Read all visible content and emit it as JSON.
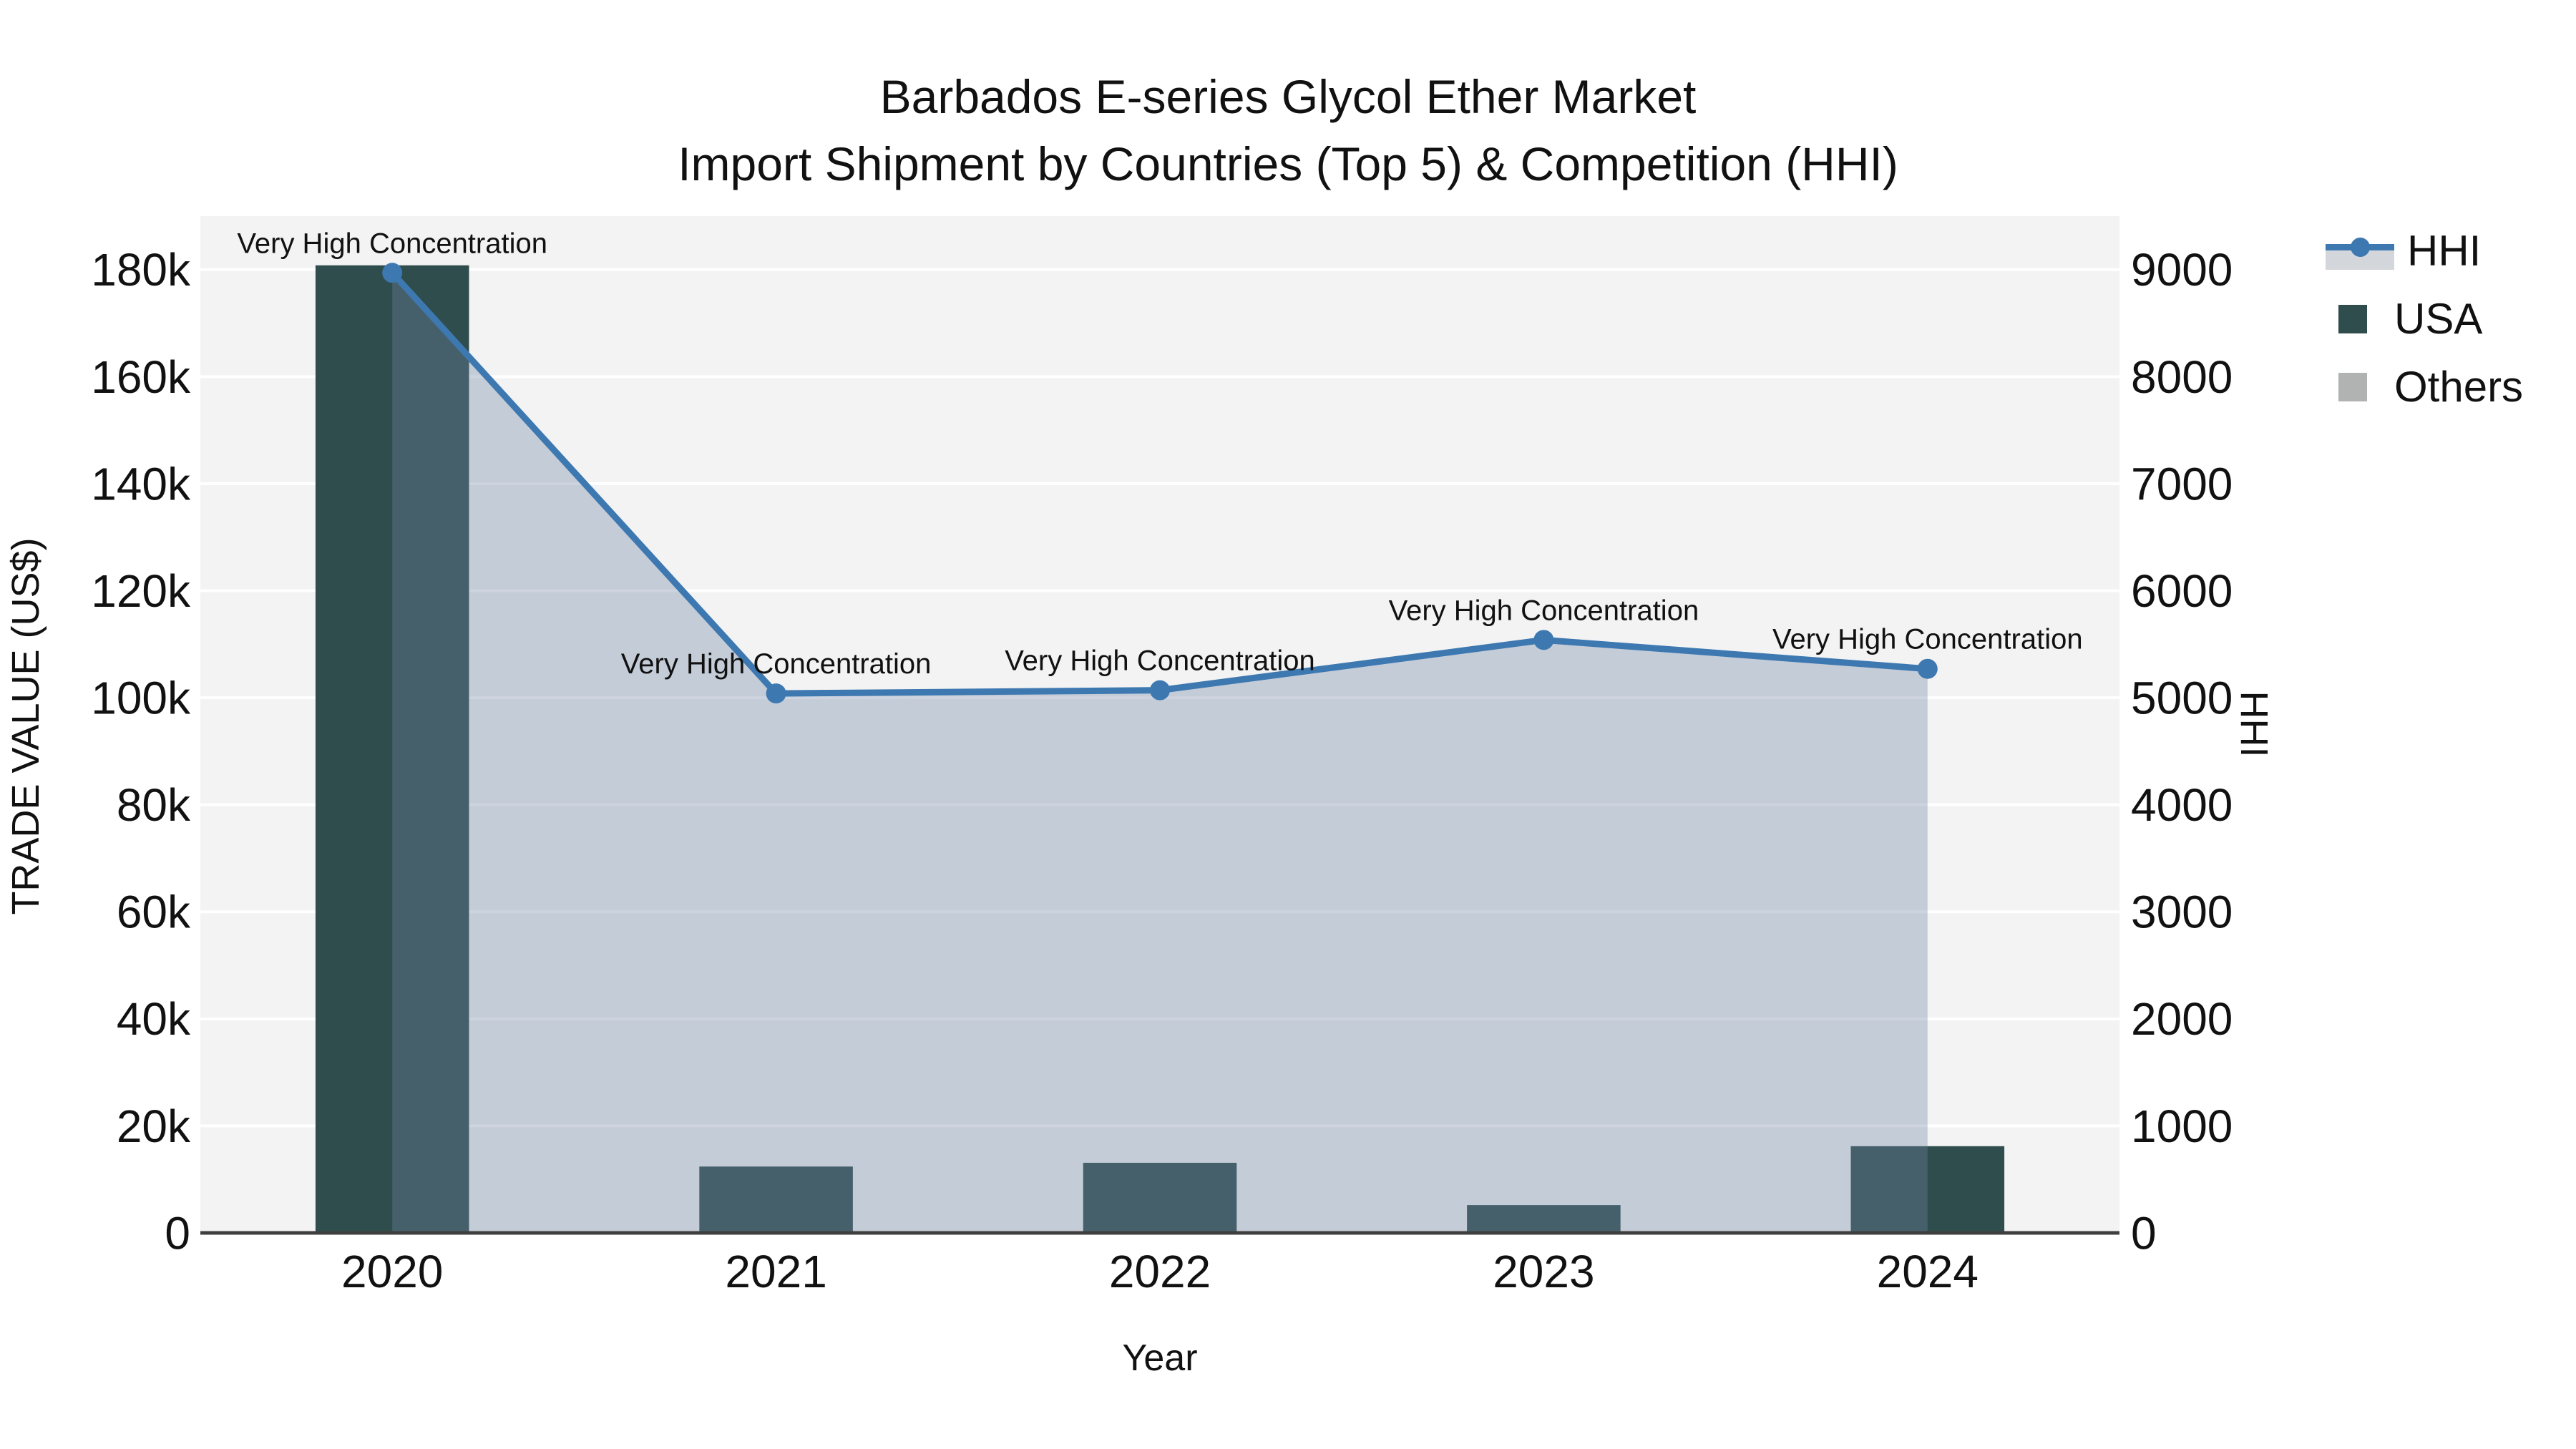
{
  "title": {
    "line1": "Barbados E-series Glycol Ether Market",
    "line2": "Import Shipment by Countries (Top 5) & Competition (HHI)"
  },
  "colors": {
    "bar_usa": "#2F4D4C",
    "bar_others": "#B0B3B2",
    "line": "#3D78B1",
    "area_fill": "#6F85A6",
    "area_opacity": 0.35,
    "plot_bg": "#F2F3F2",
    "gridline": "#FFFFFF",
    "zero_line": "#3F3F3F",
    "text": "#111111",
    "legend_band": "#D3D6DA"
  },
  "chart_data": {
    "type": "bar+line",
    "x": [
      2020,
      2021,
      2022,
      2023,
      2024
    ],
    "series": [
      {
        "name": "HHI",
        "type": "line-area",
        "axis": "right",
        "values": [
          8970,
          5040,
          5070,
          5540,
          5270
        ]
      },
      {
        "name": "USA",
        "type": "bar",
        "axis": "left",
        "values": [
          180800,
          12400,
          13100,
          5200,
          16200
        ]
      },
      {
        "name": "Others",
        "type": "bar",
        "axis": "left",
        "values": [
          0,
          0,
          0,
          0,
          0
        ]
      }
    ],
    "annotations": [
      {
        "x_index": 0,
        "text": "Very High Concentration"
      },
      {
        "x_index": 1,
        "text": "Very High Concentration"
      },
      {
        "x_index": 2,
        "text": "Very High Concentration"
      },
      {
        "x_index": 3,
        "text": "Very High Concentration"
      },
      {
        "x_index": 4,
        "text": "Very High Concentration"
      }
    ],
    "left_axis": {
      "title": "TRADE VALUE (US$)",
      "tick_labels": [
        "0",
        "20k",
        "40k",
        "60k",
        "80k",
        "100k",
        "120k",
        "140k",
        "160k",
        "180k"
      ],
      "tick_values": [
        0,
        20000,
        40000,
        60000,
        80000,
        100000,
        120000,
        140000,
        160000,
        180000
      ],
      "max": 190000
    },
    "right_axis": {
      "title": "HHI",
      "tick_labels": [
        "0",
        "1000",
        "2000",
        "3000",
        "4000",
        "5000",
        "6000",
        "7000",
        "8000",
        "9000"
      ],
      "tick_values": [
        0,
        1000,
        2000,
        3000,
        4000,
        5000,
        6000,
        7000,
        8000,
        9000
      ],
      "max": 9500
    },
    "x_axis": {
      "title": "Year",
      "labels": [
        "2020",
        "2021",
        "2022",
        "2023",
        "2024"
      ]
    },
    "legend_position": "top-right"
  }
}
